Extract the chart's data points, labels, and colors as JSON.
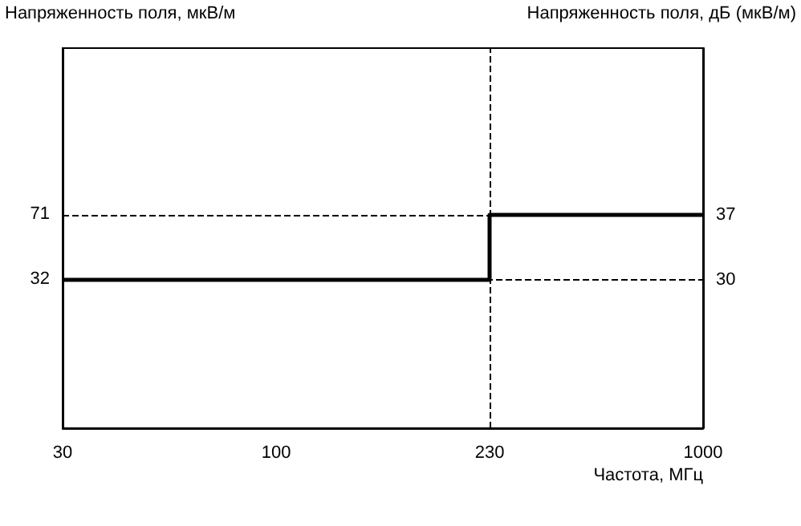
{
  "chart_data": {
    "type": "step",
    "ylabel": "Напряженность поля, мкВ/м",
    "y2label": "Напряженность поля, дБ (мкВ/м)",
    "xlabel": "Частота, МГц",
    "categories": [
      "30",
      "100",
      "230",
      "1000"
    ],
    "series": [
      {
        "color": "#000000",
        "values": [
          30,
          30,
          30,
          37
        ],
        "axis": "y2"
      }
    ],
    "log": "y",
    "ylim": [
      5,
      560
    ],
    "yticks": [
      32,
      71
    ],
    "y2lim": [
      14,
      55
    ],
    "y2ticks": [
      30,
      37
    ],
    "ref_lines": [
      {
        "axis": "y2",
        "value": 30,
        "line_style": "dashed",
        "color": "#000000"
      },
      {
        "axis": "y2",
        "value": 37,
        "line_style": "dashed",
        "color": "#000000"
      },
      {
        "axis": "x",
        "value": "230",
        "line_style": "dashed",
        "color": "#000000"
      }
    ],
    "grid": false,
    "marker": "none",
    "line_style": "solid"
  }
}
